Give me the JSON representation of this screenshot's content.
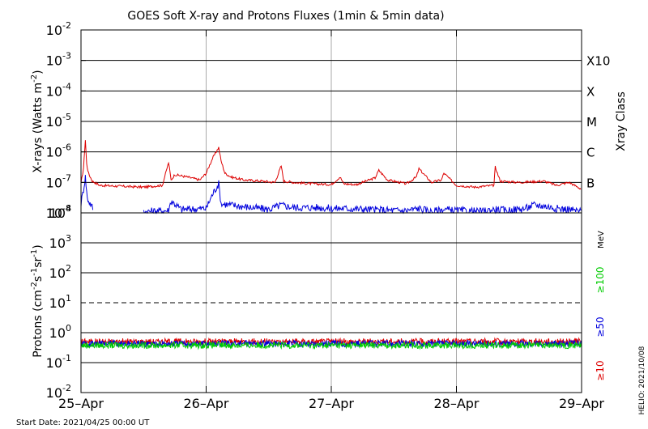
{
  "title": "GOES Soft X-ray and Protons Fluxes   (1min & 5min data)",
  "footer": {
    "start_date": "Start Date: 2021/04/25 00:00 UT",
    "credit": "HELIO: 2021/10/08"
  },
  "colors": {
    "background": "#ffffff",
    "axis": "#000000",
    "gridline": "#000000",
    "day_divider": "#aaaaaa",
    "xray_long": "#dd0000",
    "xray_short": "#0000dd",
    "proton_10": "#dd0000",
    "proton_50": "#0000dd",
    "proton_100": "#00cc00"
  },
  "chart_data": [
    {
      "type": "line",
      "panel": "xray",
      "ylabel": "X-rays (Watts m",
      "ylabel_sup": "-2",
      "ylabel_close": ")",
      "y_scale": "log",
      "ylim": [
        1e-08,
        0.01
      ],
      "y_ticks": [
        {
          "base": "10",
          "exp": "-2",
          "value": 0.01
        },
        {
          "base": "10",
          "exp": "-3",
          "value": 0.001
        },
        {
          "base": "10",
          "exp": "-4",
          "value": 0.0001
        },
        {
          "base": "10",
          "exp": "-5",
          "value": 1e-05
        },
        {
          "base": "10",
          "exp": "-6",
          "value": 1e-06
        },
        {
          "base": "10",
          "exp": "-7",
          "value": 1e-07
        },
        {
          "base": "10",
          "exp": "-8",
          "value": 1e-08
        }
      ],
      "right_axis_label": "Xray Class",
      "classes": [
        {
          "label": "X10",
          "value": 0.001
        },
        {
          "label": "X",
          "value": 0.0001
        },
        {
          "label": "M",
          "value": 1e-05
        },
        {
          "label": "C",
          "value": 1e-06
        },
        {
          "label": "B",
          "value": 1e-07
        }
      ],
      "series": [
        {
          "key": "long",
          "color_key": "xray_long",
          "x": [
            0,
            0.02,
            0.035,
            0.045,
            0.06,
            0.09,
            0.15,
            0.3,
            0.5,
            0.65,
            0.7,
            0.72,
            0.75,
            0.85,
            0.95,
            1.0,
            1.05,
            1.1,
            1.12,
            1.15,
            1.2,
            1.3,
            1.45,
            1.55,
            1.6,
            1.62,
            1.7,
            1.85,
            2.0,
            2.07,
            2.1,
            2.2,
            2.35,
            2.38,
            2.45,
            2.6,
            2.68,
            2.7,
            2.8,
            2.88,
            2.9,
            3.0,
            3.15,
            3.3,
            3.31,
            3.35,
            3.5,
            3.7,
            3.8,
            3.9,
            4.0
          ],
          "y": [
            9e-08,
            3e-07,
            2.5e-06,
            4e-07,
            2e-07,
            1.1e-07,
            8e-08,
            7.5e-08,
            7e-08,
            8e-08,
            4.5e-07,
            1.2e-07,
            1.8e-07,
            1.5e-07,
            1.2e-07,
            2e-07,
            6e-07,
            1.4e-06,
            5e-07,
            2e-07,
            1.5e-07,
            1.2e-07,
            1.1e-07,
            1e-07,
            3.5e-07,
            1.1e-07,
            1e-07,
            9e-08,
            8.5e-08,
            1.5e-07,
            9e-08,
            8.5e-08,
            1.4e-07,
            2.5e-07,
            1.2e-07,
            9e-08,
            1.5e-07,
            2.8e-07,
            1e-07,
            1.2e-07,
            2e-07,
            8e-08,
            7e-08,
            8e-08,
            3.2e-07,
            1.1e-07,
            1e-07,
            1.1e-07,
            8e-08,
            1e-07,
            6e-08
          ]
        },
        {
          "key": "short",
          "color_key": "xray_short",
          "x": [
            0,
            0.02,
            0.035,
            0.05,
            0.1,
            0.15,
            0.3,
            0.5,
            0.7,
            0.72,
            0.8,
            1.0,
            1.05,
            1.1,
            1.12,
            1.3,
            1.5,
            1.6,
            1.7,
            1.9,
            2.0,
            2.1,
            2.3,
            2.5,
            2.6,
            2.7,
            2.8,
            2.9,
            3.0,
            3.2,
            3.3,
            3.4,
            3.55,
            3.62,
            3.7,
            3.8,
            3.9,
            4.0
          ],
          "y": [
            2e-08,
            6e-08,
            1.5e-07,
            3e-08,
            1.3e-08,
            0,
            0,
            1.1e-08,
            1.2e-08,
            2.5e-08,
            1.3e-08,
            1.4e-08,
            4e-08,
            9e-08,
            2e-08,
            1.6e-08,
            1.3e-08,
            1.8e-08,
            1.5e-08,
            1.5e-08,
            1.4e-08,
            1.4e-08,
            1.3e-08,
            1.2e-08,
            1.2e-08,
            1.4e-08,
            1.1e-08,
            1.3e-08,
            1.2e-08,
            1.1e-08,
            1.3e-08,
            1.2e-08,
            1.4e-08,
            1.8e-08,
            1.7e-08,
            1.4e-08,
            1.3e-08,
            1.1e-08
          ]
        }
      ]
    },
    {
      "type": "line",
      "panel": "protons",
      "ylabel": "Protons (cm",
      "ylabel_parts": [
        {
          "t": "Protons (cm"
        },
        {
          "t": "-2",
          "sup": true
        },
        {
          "t": "s"
        },
        {
          "t": "-1",
          "sup": true
        },
        {
          "t": "sr"
        },
        {
          "t": "-1",
          "sup": true
        },
        {
          "t": ")"
        }
      ],
      "y_scale": "log",
      "ylim": [
        0.01,
        10000
      ],
      "y_ticks": [
        {
          "base": "10",
          "exp": "4",
          "value": 10000
        },
        {
          "base": "10",
          "exp": "3",
          "value": 1000
        },
        {
          "base": "10",
          "exp": "2",
          "value": 100
        },
        {
          "base": "10",
          "exp": "1",
          "value": 10
        },
        {
          "base": "10",
          "exp": "0",
          "value": 1
        },
        {
          "base": "10",
          "exp": "-1",
          "value": 0.1
        },
        {
          "base": "10",
          "exp": "-2",
          "value": 0.01
        }
      ],
      "threshold": 10,
      "unit": "MeV",
      "series": [
        {
          "name": "≥10",
          "color_key": "proton_10",
          "level": 0.5
        },
        {
          "name": "≥50",
          "color_key": "proton_50",
          "level": 0.43
        },
        {
          "name": "≥100",
          "color_key": "proton_100",
          "level": 0.38
        }
      ]
    }
  ],
  "x_axis": {
    "range": [
      0,
      4
    ],
    "ticks": [
      {
        "label": "25–Apr",
        "value": 0
      },
      {
        "label": "26–Apr",
        "value": 1
      },
      {
        "label": "27–Apr",
        "value": 2
      },
      {
        "label": "28–Apr",
        "value": 3
      },
      {
        "label": "29–Apr",
        "value": 4
      }
    ]
  }
}
